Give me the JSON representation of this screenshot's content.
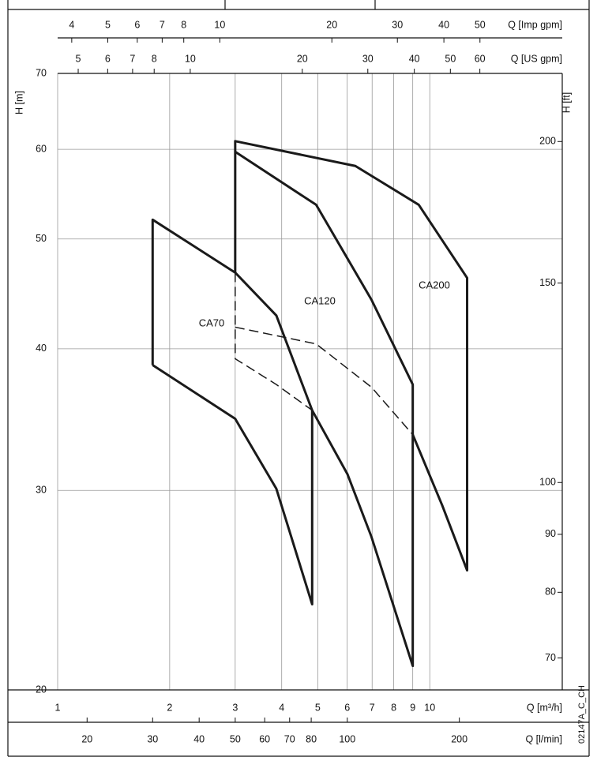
{
  "chart_data": {
    "type": "line",
    "log_scale": true,
    "grid": true,
    "xlabel": "Q [m³/h]",
    "xlim": [
      1,
      22.7
    ],
    "xticks": [
      1,
      2,
      3,
      4,
      5,
      6,
      7,
      8,
      9,
      10
    ],
    "ylabel": "H [m]",
    "ylim": [
      20,
      70
    ],
    "yticks": [
      20,
      30,
      40,
      50,
      60,
      70
    ],
    "y2label": "H [ft]",
    "y2lim": [
      65.6,
      229.7
    ],
    "y2ticks": [
      70,
      80,
      90,
      100,
      150,
      200
    ],
    "top_axes": [
      {
        "label": "Q [Imp gpm]",
        "xlim": [
          3.666,
          83.2
        ],
        "xticks": [
          4,
          5,
          6,
          7,
          8,
          10,
          20,
          30,
          40,
          50
        ]
      },
      {
        "label": "Q [US gpm]",
        "xlim": [
          4.403,
          99.9
        ],
        "xticks": [
          5,
          6,
          7,
          8,
          10,
          20,
          30,
          40,
          50,
          60
        ]
      }
    ],
    "bottom_axis2": {
      "label": "Q [l/min]",
      "xlim": [
        16.67,
        378
      ],
      "xticks": [
        20,
        30,
        40,
        50,
        60,
        70,
        80,
        100,
        200
      ]
    },
    "code": "02147A_C_CH",
    "series": [
      {
        "name": "CA70",
        "color": "#1a1a1a",
        "dash": false,
        "x": [
          1.8,
          1.8,
          3,
          3.87,
          4.83,
          4.83,
          3.87,
          3,
          1.8
        ],
        "values": [
          38.7,
          52,
          46.7,
          42.8,
          35.3,
          23.8,
          30.1,
          34.7,
          38.7
        ]
      },
      {
        "name": "CA120",
        "color": "#1a1a1a",
        "dash": false,
        "x": [
          3,
          4.95,
          6.97,
          9,
          9,
          6.97,
          6.01,
          4.83
        ],
        "values": [
          59.7,
          53.6,
          44.2,
          37.2,
          21,
          27.3,
          31,
          35.3
        ]
      },
      {
        "name": "CA200",
        "color": "#1a1a1a",
        "dash": false,
        "x": [
          3,
          3,
          6.31,
          9.34,
          12.6,
          12.6,
          10.8,
          9
        ],
        "values": [
          46.7,
          61,
          58,
          53.6,
          46.2,
          25.5,
          29.1,
          33.6
        ]
      },
      {
        "color": "#1a1a1a",
        "dash": true,
        "x": [
          3,
          3,
          3.87,
          4.83
        ],
        "values": [
          46.7,
          39.2,
          37.2,
          35.3
        ]
      },
      {
        "color": "#1a1a1a",
        "dash": true,
        "x": [
          3,
          4.95,
          6.97,
          9
        ],
        "values": [
          41.8,
          40.4,
          37,
          33.6
        ]
      }
    ]
  }
}
